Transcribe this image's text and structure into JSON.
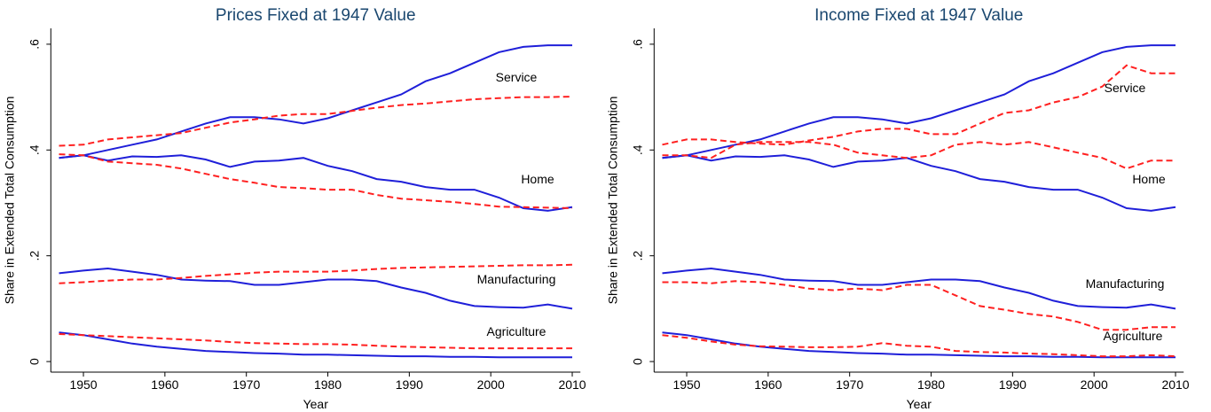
{
  "chart_data": [
    {
      "type": "line",
      "title": "Prices Fixed at 1947 Value",
      "xlabel": "Year",
      "ylabel": "Share in Extended Total Consumption",
      "x": [
        1947,
        1950,
        1953,
        1956,
        1959,
        1962,
        1965,
        1968,
        1971,
        1974,
        1977,
        1980,
        1983,
        1986,
        1989,
        1992,
        1995,
        1998,
        2001,
        2004,
        2007,
        2010
      ],
      "xlim": [
        1946,
        2011
      ],
      "xticks": [
        1950,
        1960,
        1970,
        1980,
        1990,
        2000,
        2010
      ],
      "ylim": [
        -0.02,
        0.63
      ],
      "yticks": [
        0,
        {
          "value": 0.2,
          "label": ".2"
        },
        {
          "value": 0.4,
          "label": ".4"
        },
        {
          "value": 0.6,
          "label": ".6"
        }
      ],
      "annotations": [
        "Service",
        "Home",
        "Manufacturing",
        "Agriculture"
      ],
      "series": [
        {
          "color": "#1f1fd9",
          "dashed": false,
          "values": [
            0.385,
            0.39,
            0.4,
            0.41,
            0.42,
            0.435,
            0.45,
            0.462,
            0.462,
            0.458,
            0.45,
            0.46,
            0.475,
            0.49,
            0.505,
            0.53,
            0.545,
            0.565,
            0.585,
            0.595,
            0.598,
            0.598
          ]
        },
        {
          "color": "#ff2020",
          "dashed": true,
          "values": [
            0.408,
            0.41,
            0.42,
            0.424,
            0.428,
            0.432,
            0.442,
            0.452,
            0.458,
            0.465,
            0.468,
            0.468,
            0.474,
            0.48,
            0.485,
            0.488,
            0.492,
            0.496,
            0.498,
            0.5,
            0.5,
            0.501
          ]
        },
        {
          "color": "#1f1fd9",
          "dashed": false,
          "values": [
            0.385,
            0.39,
            0.38,
            0.388,
            0.387,
            0.39,
            0.382,
            0.368,
            0.378,
            0.38,
            0.385,
            0.37,
            0.36,
            0.345,
            0.34,
            0.33,
            0.325,
            0.325,
            0.31,
            0.29,
            0.285,
            0.292
          ]
        },
        {
          "color": "#ff2020",
          "dashed": true,
          "values": [
            0.392,
            0.39,
            0.378,
            0.375,
            0.372,
            0.365,
            0.355,
            0.345,
            0.338,
            0.33,
            0.328,
            0.325,
            0.325,
            0.315,
            0.308,
            0.305,
            0.302,
            0.298,
            0.293,
            0.292,
            0.291,
            0.29
          ]
        },
        {
          "color": "#1f1fd9",
          "dashed": false,
          "values": [
            0.167,
            0.172,
            0.176,
            0.17,
            0.164,
            0.155,
            0.153,
            0.152,
            0.145,
            0.145,
            0.15,
            0.155,
            0.155,
            0.152,
            0.14,
            0.13,
            0.115,
            0.105,
            0.103,
            0.102,
            0.108,
            0.1
          ]
        },
        {
          "color": "#ff2020",
          "dashed": true,
          "values": [
            0.148,
            0.15,
            0.153,
            0.155,
            0.155,
            0.158,
            0.162,
            0.165,
            0.168,
            0.17,
            0.17,
            0.17,
            0.172,
            0.175,
            0.177,
            0.178,
            0.179,
            0.18,
            0.181,
            0.182,
            0.182,
            0.183
          ]
        },
        {
          "color": "#1f1fd9",
          "dashed": false,
          "values": [
            0.055,
            0.05,
            0.042,
            0.034,
            0.028,
            0.024,
            0.02,
            0.018,
            0.016,
            0.015,
            0.013,
            0.013,
            0.012,
            0.011,
            0.01,
            0.01,
            0.009,
            0.009,
            0.008,
            0.008,
            0.008,
            0.008
          ]
        },
        {
          "color": "#ff2020",
          "dashed": true,
          "values": [
            0.052,
            0.05,
            0.048,
            0.046,
            0.044,
            0.042,
            0.04,
            0.037,
            0.035,
            0.034,
            0.033,
            0.033,
            0.032,
            0.03,
            0.028,
            0.027,
            0.026,
            0.025,
            0.025,
            0.025,
            0.025,
            0.025
          ]
        }
      ]
    },
    {
      "type": "line",
      "title": "Income Fixed at 1947 Value",
      "xlabel": "Year",
      "ylabel": "Share in Extended Total Consumption",
      "x": [
        1947,
        1950,
        1953,
        1956,
        1959,
        1962,
        1965,
        1968,
        1971,
        1974,
        1977,
        1980,
        1983,
        1986,
        1989,
        1992,
        1995,
        1998,
        2001,
        2004,
        2007,
        2010
      ],
      "xlim": [
        1946,
        2011
      ],
      "xticks": [
        1950,
        1960,
        1970,
        1980,
        1990,
        2000,
        2010
      ],
      "ylim": [
        -0.02,
        0.63
      ],
      "yticks": [
        0,
        {
          "value": 0.2,
          "label": ".2"
        },
        {
          "value": 0.4,
          "label": ".4"
        },
        {
          "value": 0.6,
          "label": ".6"
        }
      ],
      "annotations": [
        "Service",
        "Home",
        "Manufacturing",
        "Agriculture"
      ],
      "series": [
        {
          "color": "#1f1fd9",
          "dashed": false,
          "values": [
            0.385,
            0.39,
            0.4,
            0.41,
            0.42,
            0.435,
            0.45,
            0.462,
            0.462,
            0.458,
            0.45,
            0.46,
            0.475,
            0.49,
            0.505,
            0.53,
            0.545,
            0.565,
            0.585,
            0.595,
            0.598,
            0.598
          ]
        },
        {
          "color": "#ff2020",
          "dashed": true,
          "values": [
            0.41,
            0.42,
            0.42,
            0.415,
            0.412,
            0.41,
            0.418,
            0.425,
            0.435,
            0.44,
            0.44,
            0.43,
            0.43,
            0.45,
            0.47,
            0.475,
            0.49,
            0.5,
            0.52,
            0.56,
            0.545,
            0.545
          ]
        },
        {
          "color": "#1f1fd9",
          "dashed": false,
          "values": [
            0.385,
            0.39,
            0.38,
            0.388,
            0.387,
            0.39,
            0.382,
            0.368,
            0.378,
            0.38,
            0.385,
            0.37,
            0.36,
            0.345,
            0.34,
            0.33,
            0.325,
            0.325,
            0.31,
            0.29,
            0.285,
            0.292
          ]
        },
        {
          "color": "#ff2020",
          "dashed": true,
          "values": [
            0.39,
            0.39,
            0.385,
            0.41,
            0.415,
            0.415,
            0.415,
            0.41,
            0.395,
            0.39,
            0.385,
            0.39,
            0.41,
            0.415,
            0.41,
            0.415,
            0.405,
            0.395,
            0.385,
            0.365,
            0.38,
            0.38
          ]
        },
        {
          "color": "#1f1fd9",
          "dashed": false,
          "values": [
            0.167,
            0.172,
            0.176,
            0.17,
            0.164,
            0.155,
            0.153,
            0.152,
            0.145,
            0.145,
            0.15,
            0.155,
            0.155,
            0.152,
            0.14,
            0.13,
            0.115,
            0.105,
            0.103,
            0.102,
            0.108,
            0.1
          ]
        },
        {
          "color": "#ff2020",
          "dashed": true,
          "values": [
            0.15,
            0.15,
            0.148,
            0.152,
            0.15,
            0.145,
            0.138,
            0.135,
            0.138,
            0.135,
            0.145,
            0.145,
            0.125,
            0.105,
            0.098,
            0.09,
            0.085,
            0.075,
            0.06,
            0.06,
            0.065,
            0.065
          ]
        },
        {
          "color": "#1f1fd9",
          "dashed": false,
          "values": [
            0.055,
            0.05,
            0.042,
            0.034,
            0.028,
            0.024,
            0.02,
            0.018,
            0.016,
            0.015,
            0.013,
            0.013,
            0.012,
            0.011,
            0.01,
            0.01,
            0.009,
            0.009,
            0.008,
            0.008,
            0.008,
            0.008
          ]
        },
        {
          "color": "#ff2020",
          "dashed": true,
          "values": [
            0.05,
            0.045,
            0.038,
            0.032,
            0.029,
            0.028,
            0.027,
            0.027,
            0.028,
            0.035,
            0.03,
            0.028,
            0.02,
            0.018,
            0.017,
            0.015,
            0.014,
            0.012,
            0.01,
            0.01,
            0.012,
            0.01
          ]
        }
      ]
    }
  ]
}
